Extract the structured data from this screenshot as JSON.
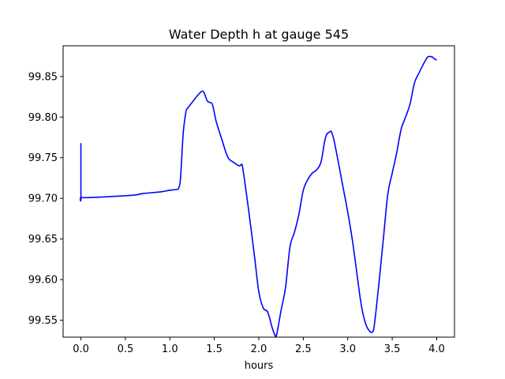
{
  "chart_data": {
    "type": "line",
    "title": "Water Depth h at gauge 545",
    "xlabel": "hours",
    "ylabel": "",
    "xlim": [
      -0.2,
      4.2
    ],
    "ylim": [
      99.5292,
      99.8877
    ],
    "xticks": [
      0.0,
      0.5,
      1.0,
      1.5,
      2.0,
      2.5,
      3.0,
      3.5,
      4.0
    ],
    "xtick_labels": [
      "0.0",
      "0.5",
      "1.0",
      "1.5",
      "2.0",
      "2.5",
      "3.0",
      "3.5",
      "4.0"
    ],
    "yticks": [
      99.55,
      99.6,
      99.65,
      99.7,
      99.75,
      99.8,
      99.85
    ],
    "ytick_labels": [
      "99.55",
      "99.60",
      "99.65",
      "99.70",
      "99.75",
      "99.80",
      "99.85"
    ],
    "grid": false,
    "line_color": "#0000ff",
    "series": [
      {
        "x": [
          0.0,
          0.0,
          0.0,
          0.1,
          0.3,
          0.6,
          0.7,
          0.9,
          1.0,
          1.08,
          1.1,
          1.12,
          1.15,
          1.18,
          1.2,
          1.25,
          1.3,
          1.35,
          1.38,
          1.42,
          1.45,
          1.48,
          1.52,
          1.58,
          1.65,
          1.72,
          1.78,
          1.8,
          1.82,
          1.88,
          1.95,
          2.0,
          2.05,
          2.1,
          2.15,
          2.18,
          2.2,
          2.25,
          2.3,
          2.35,
          2.4,
          2.45,
          2.5,
          2.55,
          2.6,
          2.65,
          2.7,
          2.75,
          2.8,
          2.82,
          2.85,
          2.9,
          2.95,
          3.0,
          3.05,
          3.1,
          3.15,
          3.2,
          3.25,
          3.28,
          3.3,
          3.35,
          3.4,
          3.45,
          3.5,
          3.55,
          3.6,
          3.65,
          3.7,
          3.75,
          3.8,
          3.85,
          3.9,
          3.95,
          3.97,
          4.0
        ],
        "y": [
          99.768,
          99.702,
          99.701,
          99.701,
          99.702,
          99.704,
          99.706,
          99.708,
          99.71,
          99.711,
          99.713,
          99.725,
          99.78,
          99.806,
          99.811,
          99.818,
          99.825,
          99.831,
          99.831,
          99.82,
          99.818,
          99.815,
          99.795,
          99.774,
          99.751,
          99.744,
          99.74,
          99.741,
          99.737,
          99.69,
          99.63,
          99.585,
          99.565,
          99.56,
          99.541,
          99.532,
          99.532,
          99.562,
          99.59,
          99.64,
          99.658,
          99.68,
          99.71,
          99.723,
          99.731,
          99.735,
          99.745,
          99.775,
          99.782,
          99.781,
          99.769,
          99.741,
          99.712,
          99.683,
          99.65,
          99.61,
          99.57,
          99.546,
          99.536,
          99.536,
          99.545,
          99.595,
          99.65,
          99.705,
          99.731,
          99.756,
          99.785,
          99.8,
          99.816,
          99.842,
          99.854,
          99.865,
          99.874,
          99.874,
          99.872,
          99.87
        ]
      }
    ]
  }
}
